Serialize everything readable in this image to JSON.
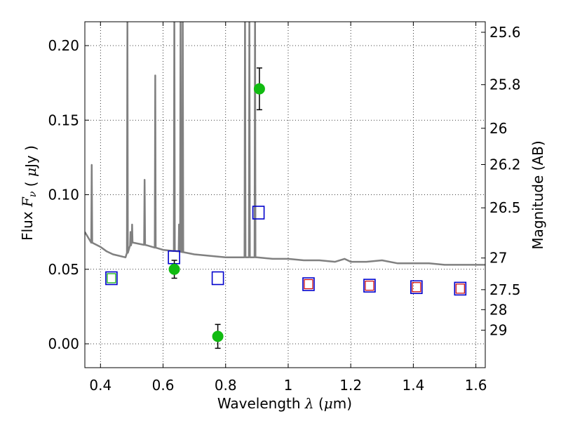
{
  "chart_data": {
    "type": "scatter",
    "title": "",
    "xlabel": "Wavelength",
    "xlabel_symbol": "λ",
    "xlabel_unit_prefix": "(",
    "xlabel_unit_symbol": "μ",
    "xlabel_unit_suffix": "m)",
    "ylabel": "Flux",
    "ylabel_symbol": "F",
    "ylabel_subscript": "ν",
    "ylabel_unit_prefix": "(",
    "ylabel_unit_symbol": "μ",
    "ylabel_unit_suffix": "Jy )",
    "y2label": "Magnitude (AB)",
    "xlim": [
      0.35,
      1.63
    ],
    "ylim": [
      -0.016,
      0.216
    ],
    "grid": true,
    "grid_style": "dotted",
    "x_ticks": [
      {
        "value": 0.4,
        "label": "0.4"
      },
      {
        "value": 0.6,
        "label": "0.6"
      },
      {
        "value": 0.8,
        "label": "0.8"
      },
      {
        "value": 1.0,
        "label": "1"
      },
      {
        "value": 1.2,
        "label": "1.2"
      },
      {
        "value": 1.4,
        "label": "1.4"
      },
      {
        "value": 1.6,
        "label": "1.6"
      }
    ],
    "y_ticks": [
      {
        "value": 0.0,
        "label": "0.00"
      },
      {
        "value": 0.05,
        "label": "0.05"
      },
      {
        "value": 0.1,
        "label": "0.10"
      },
      {
        "value": 0.15,
        "label": "0.15"
      },
      {
        "value": 0.2,
        "label": "0.20"
      }
    ],
    "y2_ticks": [
      {
        "magnitude": 25.6,
        "label": "25.6"
      },
      {
        "magnitude": 25.8,
        "label": "25.8"
      },
      {
        "magnitude": 26.0,
        "label": "26"
      },
      {
        "magnitude": 26.2,
        "label": "26.2"
      },
      {
        "magnitude": 26.5,
        "label": "26.5"
      },
      {
        "magnitude": 27.0,
        "label": "27"
      },
      {
        "magnitude": 27.5,
        "label": "27.5"
      },
      {
        "magnitude": 28.0,
        "label": "28"
      },
      {
        "magnitude": 29.0,
        "label": "29"
      }
    ],
    "series": [
      {
        "kind": "line",
        "color": "#808080",
        "continuum": [
          [
            0.35,
            0.075
          ],
          [
            0.37,
            0.068
          ],
          [
            0.4,
            0.065
          ],
          [
            0.42,
            0.062
          ],
          [
            0.44,
            0.06
          ],
          [
            0.46,
            0.059
          ],
          [
            0.48,
            0.058
          ],
          [
            0.5,
            0.068
          ],
          [
            0.55,
            0.066
          ],
          [
            0.6,
            0.063
          ],
          [
            0.65,
            0.062
          ],
          [
            0.7,
            0.06
          ],
          [
            0.75,
            0.059
          ],
          [
            0.8,
            0.058
          ],
          [
            0.85,
            0.058
          ],
          [
            0.9,
            0.058
          ],
          [
            0.95,
            0.057
          ],
          [
            1.0,
            0.057
          ],
          [
            1.05,
            0.056
          ],
          [
            1.1,
            0.056
          ],
          [
            1.15,
            0.055
          ],
          [
            1.18,
            0.057
          ],
          [
            1.2,
            0.055
          ],
          [
            1.25,
            0.055
          ],
          [
            1.3,
            0.056
          ],
          [
            1.35,
            0.054
          ],
          [
            1.4,
            0.054
          ],
          [
            1.45,
            0.054
          ],
          [
            1.5,
            0.053
          ],
          [
            1.55,
            0.053
          ],
          [
            1.63,
            0.053
          ]
        ],
        "emission_lines": [
          [
            0.372,
            0.12
          ],
          [
            0.486,
            0.216
          ],
          [
            0.496,
            0.075
          ],
          [
            0.501,
            0.08
          ],
          [
            0.541,
            0.11
          ],
          [
            0.575,
            0.18
          ],
          [
            0.636,
            0.225
          ],
          [
            0.651,
            0.08
          ],
          [
            0.656,
            0.225
          ],
          [
            0.663,
            0.225
          ],
          [
            0.862,
            0.225
          ],
          [
            0.876,
            0.225
          ],
          [
            0.894,
            0.225
          ]
        ]
      },
      {
        "kind": "open-square",
        "color": "#0000cc",
        "points": [
          {
            "x": 0.435,
            "y": 0.044
          },
          {
            "x": 0.635,
            "y": 0.058
          },
          {
            "x": 0.775,
            "y": 0.044
          },
          {
            "x": 0.905,
            "y": 0.088
          },
          {
            "x": 1.065,
            "y": 0.04
          },
          {
            "x": 1.26,
            "y": 0.039
          },
          {
            "x": 1.41,
            "y": 0.038
          },
          {
            "x": 1.55,
            "y": 0.037
          }
        ]
      },
      {
        "kind": "inner-square",
        "color": "#cc0000",
        "points": [
          {
            "x": 1.065,
            "y": 0.04
          },
          {
            "x": 1.26,
            "y": 0.039
          },
          {
            "x": 1.41,
            "y": 0.038
          },
          {
            "x": 1.55,
            "y": 0.037
          }
        ]
      },
      {
        "kind": "inner-square",
        "color": "#00aa00",
        "points": [
          {
            "x": 0.435,
            "y": 0.044
          }
        ]
      },
      {
        "kind": "filled-circle-errorbar",
        "color": "#11bb11",
        "points": [
          {
            "x": 0.636,
            "y": 0.05,
            "err": 0.006
          },
          {
            "x": 0.775,
            "y": 0.005,
            "err": 0.008
          },
          {
            "x": 0.908,
            "y": 0.171,
            "err": 0.014
          }
        ]
      }
    ]
  }
}
